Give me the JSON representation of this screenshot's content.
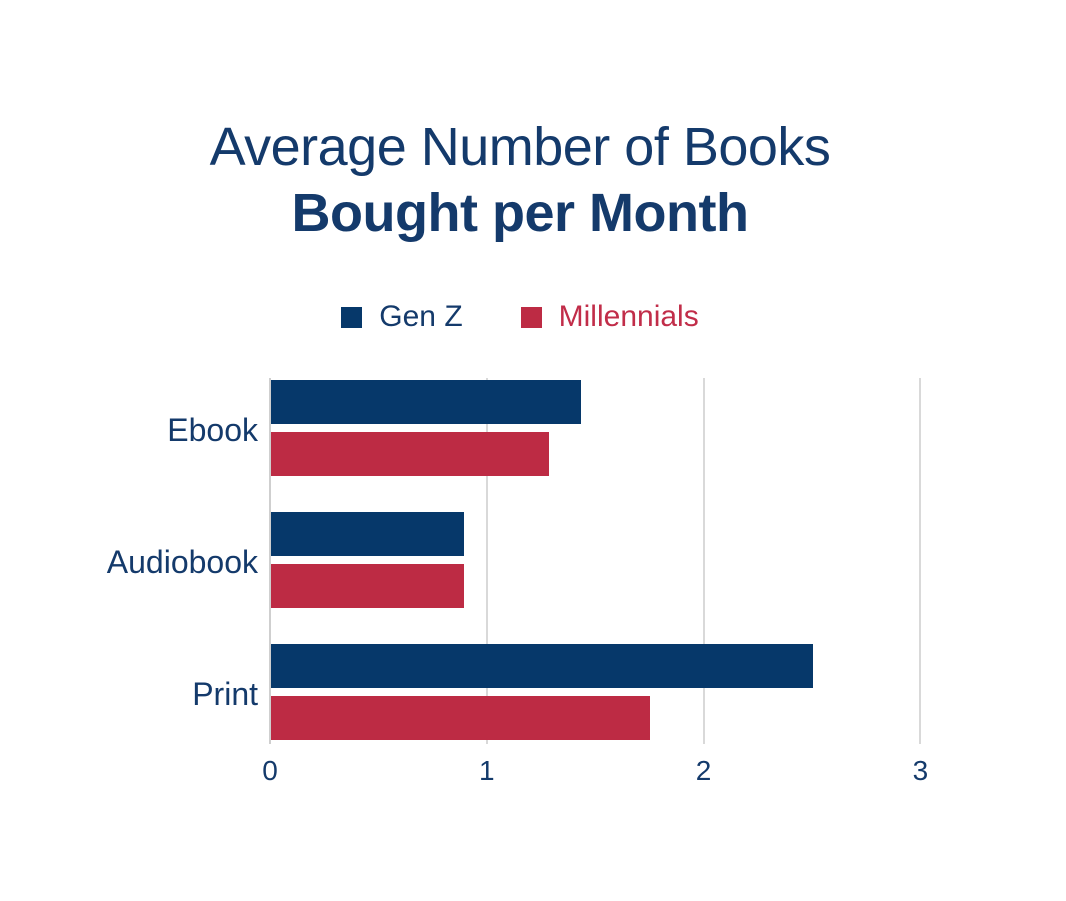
{
  "title": {
    "line1": "Average Number of Books",
    "line2": "Bought per Month"
  },
  "legend": {
    "items": [
      {
        "label": "Gen Z",
        "swatch": "navy-square-icon"
      },
      {
        "label": "Millennials",
        "swatch": "red-square-icon"
      }
    ]
  },
  "chart_data": {
    "type": "bar",
    "orientation": "horizontal",
    "title": "Average Number of Books Bought per Month",
    "categories": [
      "Ebook",
      "Audiobook",
      "Print"
    ],
    "series": [
      {
        "name": "Gen Z",
        "color": "#06386a",
        "values": [
          1.43,
          0.89,
          2.5
        ]
      },
      {
        "name": "Millennials",
        "color": "#bd2b44",
        "values": [
          1.28,
          0.89,
          1.75
        ]
      }
    ],
    "xlim": [
      0,
      3
    ],
    "xticks": [
      0,
      1,
      2,
      3
    ],
    "grid": true,
    "legend_position": "top",
    "xlabel": "",
    "ylabel": ""
  },
  "colors": {
    "navy_bar": "#06386a",
    "red_bar": "#bd2b44",
    "navy_text": "#143a6b",
    "red_text": "#c12d49",
    "gridline": "#d9d9d9",
    "axis_line": "#cfcfcf",
    "background": "#ffffff"
  }
}
